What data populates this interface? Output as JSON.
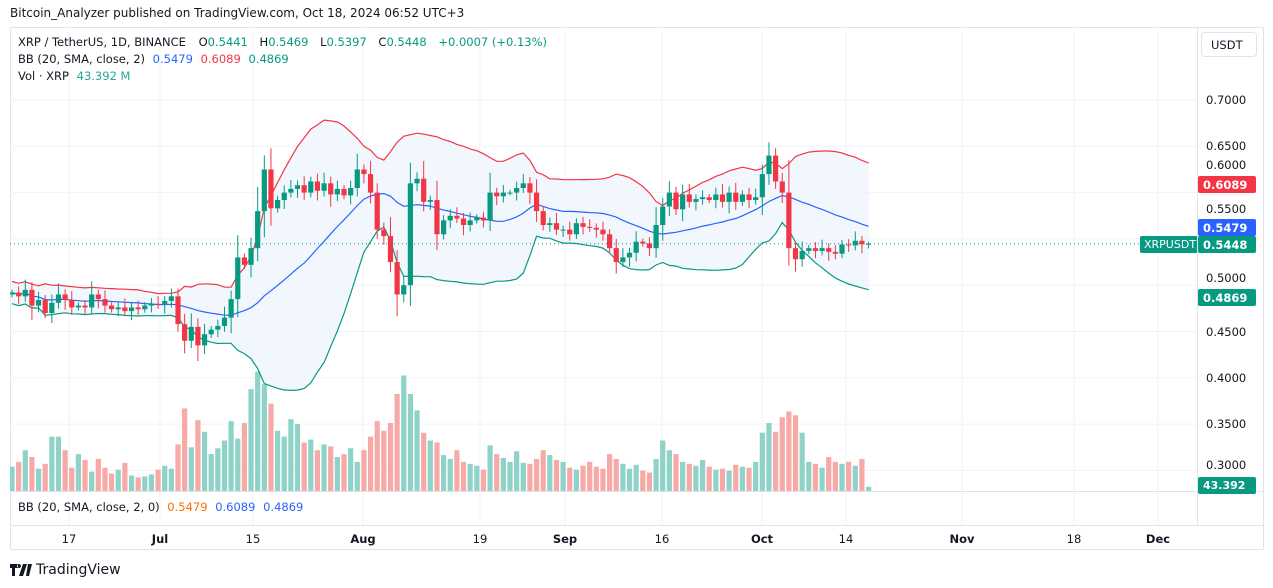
{
  "header": {
    "published": "Bitcoin_Analyzer published on TradingView.com, Oct 18, 2024 06:52 UTC+3"
  },
  "legend": {
    "symbol": "XRP / TetherUS, 1D, BINANCE",
    "o_label": "O",
    "o": "0.5441",
    "h_label": "H",
    "h": "0.5469",
    "l_label": "L",
    "l": "0.5397",
    "c_label": "C",
    "c": "0.5448",
    "change": "+0.0007 (+0.13%)",
    "bb_label": "BB (20, SMA, close, 2)",
    "bb_mid": "0.5479",
    "bb_upper": "0.6089",
    "bb_lower": "0.4869",
    "vol_label": "Vol · XRP",
    "vol_value": "43.392 M"
  },
  "lower_pane": {
    "bb_label": "BB (20, SMA, close, 2, 0)",
    "v1": "0.5479",
    "v2": "0.6089",
    "v3": "0.4869"
  },
  "axis": {
    "currency": "USDT",
    "price_ticks": [
      "0.7000",
      "0.6500",
      "0.6000",
      "0.5500",
      "0.5000",
      "0.4500",
      "0.4000",
      "0.3500",
      "0.3000"
    ],
    "tags": {
      "upper": "0.6089",
      "mid": "0.5479",
      "last": "0.5448",
      "lower": "0.4869",
      "volume": "43.392 M",
      "symbol": "XRPUSDT"
    }
  },
  "time_ticks": [
    "17",
    "Jul",
    "15",
    "Aug",
    "19",
    "Sep",
    "16",
    "Oct",
    "14",
    "Nov",
    "18",
    "Dec"
  ],
  "branding": {
    "logo_text": "TradingView"
  },
  "colors": {
    "up": "#089981",
    "down": "#f23645",
    "mid": "#2962ff",
    "upper": "#f23645",
    "lower": "#089981",
    "fill": "#eef5fc"
  },
  "chart_data": {
    "type": "candlestick",
    "title": "XRP / TetherUS, 1D, BINANCE",
    "x_start": "2024-06-09",
    "interval": "1D",
    "ylim": [
      0.28,
      0.75
    ],
    "closes": [
      0.492,
      0.488,
      0.495,
      0.478,
      0.484,
      0.47,
      0.481,
      0.49,
      0.484,
      0.476,
      0.478,
      0.476,
      0.49,
      0.485,
      0.478,
      0.474,
      0.476,
      0.472,
      0.476,
      0.474,
      0.478,
      0.48,
      0.479,
      0.483,
      0.488,
      0.458,
      0.44,
      0.455,
      0.435,
      0.447,
      0.452,
      0.456,
      0.465,
      0.485,
      0.53,
      0.522,
      0.54,
      0.58,
      0.625,
      0.583,
      0.592,
      0.6,
      0.604,
      0.608,
      0.6,
      0.612,
      0.602,
      0.61,
      0.598,
      0.604,
      0.597,
      0.605,
      0.625,
      0.62,
      0.6,
      0.56,
      0.553,
      0.525,
      0.49,
      0.5,
      0.61,
      0.615,
      0.59,
      0.592,
      0.555,
      0.57,
      0.575,
      0.572,
      0.565,
      0.57,
      0.573,
      0.57,
      0.6,
      0.596,
      0.6,
      0.6,
      0.605,
      0.61,
      0.6,
      0.58,
      0.565,
      0.567,
      0.56,
      0.56,
      0.555,
      0.567,
      0.563,
      0.562,
      0.56,
      0.555,
      0.54,
      0.525,
      0.53,
      0.535,
      0.547,
      0.545,
      0.54,
      0.565,
      0.585,
      0.6,
      0.582,
      0.598,
      0.59,
      0.593,
      0.595,
      0.592,
      0.598,
      0.59,
      0.6,
      0.59,
      0.598,
      0.592,
      0.595,
      0.62,
      0.64,
      0.612,
      0.6,
      0.54,
      0.528,
      0.537,
      0.54,
      0.537,
      0.54,
      0.536,
      0.534,
      0.544,
      0.543,
      0.548,
      0.5441,
      0.5448
    ],
    "first_open": 0.49,
    "volumes_millions": [
      250,
      300,
      420,
      350,
      230,
      280,
      560,
      560,
      420,
      240,
      380,
      320,
      200,
      330,
      240,
      180,
      220,
      290,
      160,
      140,
      150,
      170,
      220,
      260,
      230,
      480,
      850,
      450,
      730,
      610,
      380,
      440,
      520,
      720,
      540,
      700,
      1050,
      1230,
      1100,
      900,
      620,
      560,
      740,
      690,
      500,
      530,
      420,
      480,
      460,
      350,
      380,
      440,
      300,
      420,
      560,
      720,
      620,
      700,
      1000,
      1190,
      1000,
      830,
      600,
      520,
      500,
      370,
      330,
      420,
      300,
      280,
      260,
      220,
      470,
      380,
      340,
      300,
      410,
      290,
      280,
      330,
      420,
      370,
      320,
      300,
      240,
      220,
      260,
      300,
      250,
      230,
      380,
      330,
      280,
      230,
      270,
      210,
      190,
      330,
      520,
      420,
      380,
      300,
      280,
      260,
      320,
      250,
      220,
      230,
      210,
      270,
      250,
      240,
      300,
      600,
      700,
      610,
      760,
      820,
      780,
      600,
      300,
      280,
      240,
      350,
      300,
      280,
      300,
      260,
      330,
      43.392
    ],
    "last": {
      "open": 0.5441,
      "high": 0.5469,
      "low": 0.5397,
      "close": 0.5448
    },
    "indicators": {
      "bb": {
        "length": 20,
        "mult": 2,
        "mid": 0.5479,
        "upper": 0.6089,
        "lower": 0.4869
      }
    }
  }
}
